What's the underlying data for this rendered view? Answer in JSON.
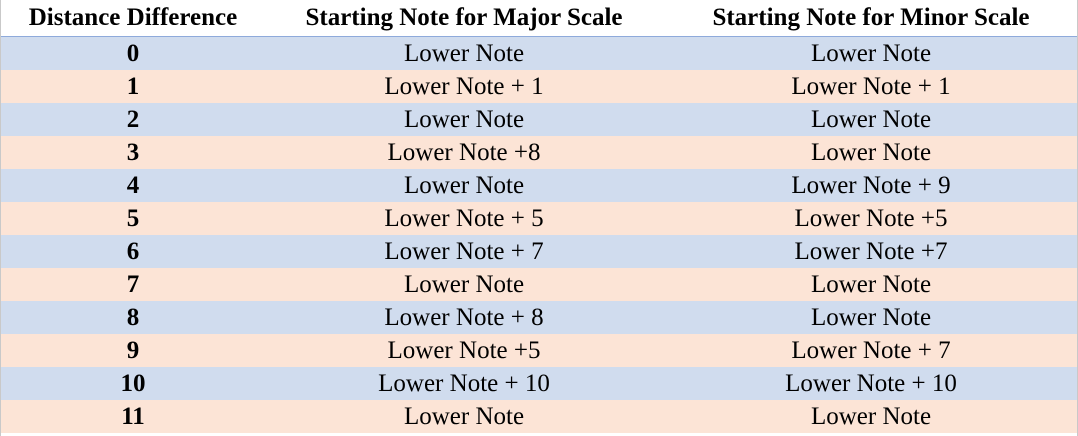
{
  "table": {
    "headers": [
      "Distance Difference",
      "Starting Note for Major Scale",
      "Starting Note for Minor Scale"
    ],
    "rows": [
      [
        "0",
        "Lower Note",
        "Lower Note"
      ],
      [
        "1",
        "Lower Note + 1",
        "Lower Note + 1"
      ],
      [
        "2",
        "Lower Note",
        "Lower Note"
      ],
      [
        "3",
        "Lower Note +8",
        "Lower Note"
      ],
      [
        "4",
        "Lower Note",
        "Lower Note + 9"
      ],
      [
        "5",
        "Lower Note + 5",
        "Lower Note +5"
      ],
      [
        "6",
        "Lower Note + 7",
        "Lower Note +7"
      ],
      [
        "7",
        "Lower Note",
        "Lower Note"
      ],
      [
        "8",
        "Lower Note + 8",
        "Lower Note"
      ],
      [
        "9",
        "Lower Note +5",
        "Lower Note + 7"
      ],
      [
        "10",
        "Lower Note + 10",
        "Lower Note + 10"
      ],
      [
        "11",
        "Lower Note",
        "Lower Note"
      ]
    ],
    "colors": {
      "band_blue": "#d0dcee",
      "band_peach": "#fce4d6",
      "header_bg": "#ffffff"
    }
  }
}
